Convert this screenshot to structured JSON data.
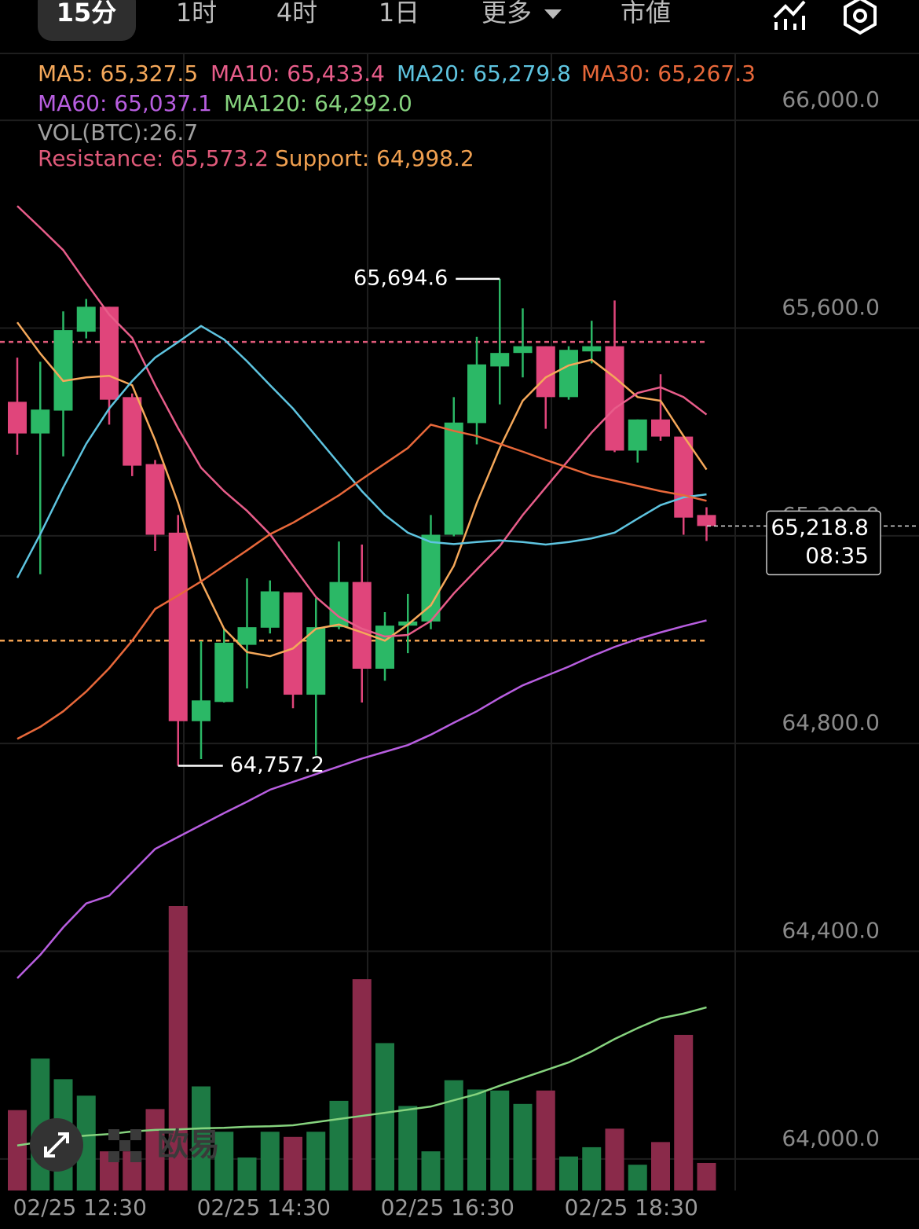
{
  "tabs": [
    "15分",
    "1时",
    "4时",
    "1日",
    "更多",
    "市値"
  ],
  "selected_tab": 0,
  "watermark": "欧易",
  "chart_data": {
    "type": "candlestick",
    "categories": [
      null,
      null,
      null,
      "02/25 12:30",
      null,
      null,
      null,
      null,
      null,
      null,
      null,
      "02/25 14:30",
      null,
      null,
      null,
      null,
      null,
      null,
      null,
      "02/25 16:30",
      null,
      null,
      null,
      null,
      null,
      null,
      null,
      "02/25 18:30",
      null,
      null,
      null
    ],
    "open": [
      65458,
      65397,
      65441,
      65593,
      65641,
      65467,
      65338,
      65206,
      64843,
      64880,
      64990,
      65023,
      65091,
      64894,
      65024,
      65111,
      64944,
      65027,
      65035,
      65202,
      65417,
      65526,
      65552,
      65565,
      65467,
      65555,
      65565,
      65364,
      65424,
      65391,
      65240
    ],
    "high": [
      65543,
      65535,
      65632,
      65656,
      65641,
      65474,
      65346,
      65240,
      64997,
      65020,
      65118,
      65114,
      65091,
      65080,
      65189,
      65183,
      65053,
      65088,
      65240,
      65467,
      65583,
      65694.6,
      65638,
      65565,
      65565,
      65614,
      65653,
      65424,
      65511,
      65391,
      65255
    ],
    "low": [
      65356,
      65126,
      65353,
      65580,
      65414,
      65315,
      65171,
      64757.2,
      64770,
      64879,
      64906,
      65012,
      64868,
      64777,
      65020,
      64879,
      64921,
      64974,
      65020,
      65199,
      65376,
      65453,
      65505,
      65406,
      65462,
      65532,
      65361,
      65341,
      65383,
      65202,
      65190
    ],
    "close": [
      65397,
      65443,
      65596,
      65641,
      65462,
      65335,
      65202,
      64843,
      64883,
      64994,
      65024,
      65093,
      64894,
      65024,
      65111,
      64944,
      65027,
      65035,
      65202,
      65418,
      65530,
      65552,
      65565,
      65467,
      65558,
      65565,
      65364,
      65424,
      65391,
      65235,
      65218.8
    ],
    "up_color": "#2bb866",
    "down_color": "#e0457b",
    "volume": {
      "name": "VOL(BTC):26.7",
      "color": "#a0a0a0",
      "up_color": "#1d7a44",
      "down_color": "#8a2a4a",
      "values": [
        78,
        128,
        108,
        92,
        38,
        38,
        79,
        276,
        101,
        57,
        32,
        57,
        52,
        57,
        87,
        205,
        143,
        82,
        38,
        107,
        98,
        97,
        84,
        97,
        33,
        42,
        60,
        25,
        47,
        151,
        26.7
      ]
    },
    "series": [
      {
        "name": "MA5: 65,327.5",
        "color": "#f5a85a",
        "values": [
          65611,
          65551,
          65498,
          65505,
          65508,
          65490,
          65384,
          65263,
          65112,
          65021,
          64976,
          64968,
          64983,
          65021,
          65029,
          65014,
          64998,
          65029,
          65066,
          65142,
          65263,
          65369,
          65460,
          65505,
          65528,
          65539,
          65505,
          65467,
          65460,
          65392,
          65327.5
        ]
      },
      {
        "name": "MA10: 65,433.4",
        "color": "#e85d8a",
        "values": [
          65835,
          65793,
          65750,
          65687,
          65626,
          65581,
          65490,
          65407,
          65331,
          65286,
          65248,
          65203,
          65142,
          65082,
          65044,
          65021,
          65006,
          65009,
          65036,
          65089,
          65135,
          65180,
          65240,
          65293,
          65346,
          65399,
          65445,
          65475,
          65486,
          65467,
          65433.4
        ]
      },
      {
        "name": "MA20: 65,279.8",
        "color": "#5ec4e0",
        "values": [
          65119,
          65203,
          65293,
          65377,
          65445,
          65498,
          65543,
          65573,
          65604,
          65578,
          65536,
          65490,
          65445,
          65392,
          65339,
          65286,
          65240,
          65206,
          65188,
          65184,
          65188,
          65191,
          65188,
          65183,
          65188,
          65195,
          65206,
          65233,
          65259,
          65274,
          65279.8
        ]
      },
      {
        "name": "MA30: 65,267.3",
        "color": "#e8683a",
        "values": [
          64809,
          64832,
          64862,
          64900,
          64945,
          64998,
          65059,
          65085,
          65112,
          65142,
          65172,
          65203,
          65225,
          65251,
          65278,
          65309,
          65339,
          65369,
          65414,
          65402,
          65392,
          65377,
          65362,
          65346,
          65331,
          65316,
          65306,
          65296,
          65286,
          65278,
          65267.3
        ]
      },
      {
        "name": "MA60: 65,037.1",
        "color": "#b85ee0",
        "values": [
          64348,
          64393,
          64446,
          64492,
          64507,
          64552,
          64597,
          64620,
          64643,
          64666,
          64688,
          64711,
          64726,
          64741,
          64756,
          64771,
          64784,
          64797,
          64817,
          64840,
          64862,
          64888,
          64912,
          64930,
          64948,
          64968,
          64986,
          65001,
          65014,
          65026,
          65037.1
        ]
      },
      {
        "name": "MA120: 64,292.0",
        "color": "#86d37e",
        "values": [
          64026,
          64033,
          64041,
          64045,
          64048,
          64053,
          64056,
          64057,
          64059,
          64060,
          64062,
          64063,
          64065,
          64071,
          64077,
          64083,
          64089,
          64095,
          64101,
          64113,
          64125,
          64141,
          64156,
          64171,
          64186,
          64207,
          64231,
          64252,
          64271,
          64280,
          64292.0
        ]
      }
    ],
    "hlines": [
      {
        "label": "Resistance: 65,573.2",
        "value": 65573.2,
        "color": "#e05a7a"
      },
      {
        "label": "Support: 64,998.2",
        "value": 64998.2,
        "color": "#f0a050"
      }
    ],
    "high_label": {
      "value": 65694.6,
      "label": "65,694.6"
    },
    "low_label": {
      "value": 64757.2,
      "label": "64,757.2"
    },
    "last_price": {
      "value": 65218.8,
      "label": "65,218.8"
    },
    "countdown": "08:35",
    "ylim": [
      63900,
      66100
    ],
    "yticks": [
      {
        "value": 64000,
        "label": "64,000.0"
      },
      {
        "value": 64400,
        "label": "64,400.0"
      },
      {
        "value": 64800,
        "label": "64,800.0"
      },
      {
        "value": 65200,
        "label": "65,200.0"
      },
      {
        "value": 65600,
        "label": "65,600.0"
      },
      {
        "value": 66000,
        "label": "66,000.0"
      }
    ],
    "grid": true
  }
}
